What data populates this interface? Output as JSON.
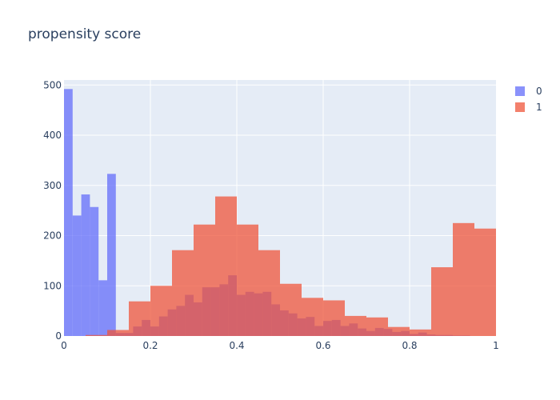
{
  "chart_data": {
    "type": "bar",
    "title": "propensity score",
    "xlabel": "",
    "ylabel": "",
    "xlim": [
      0,
      1
    ],
    "ylim": [
      0,
      510
    ],
    "x_ticks": [
      0,
      0.2,
      0.4,
      0.6,
      0.8,
      1
    ],
    "x_tick_labels": [
      "0",
      "0.2",
      "0.4",
      "0.6",
      "0.8",
      "1"
    ],
    "y_ticks": [
      0,
      100,
      200,
      300,
      400,
      500
    ],
    "y_tick_labels": [
      "0",
      "100",
      "200",
      "300",
      "400",
      "500"
    ],
    "grid": true,
    "legend_position": "top-right",
    "series": [
      {
        "name": "0",
        "color": "#636efa",
        "opacity": 0.75,
        "bins": [
          [
            0.0,
            0.02,
            492
          ],
          [
            0.02,
            0.04,
            240
          ],
          [
            0.04,
            0.06,
            282
          ],
          [
            0.06,
            0.08,
            257
          ],
          [
            0.08,
            0.1,
            111
          ],
          [
            0.1,
            0.12,
            323
          ],
          [
            0.12,
            0.14,
            6
          ],
          [
            0.14,
            0.16,
            6
          ],
          [
            0.16,
            0.18,
            19
          ],
          [
            0.18,
            0.2,
            32
          ],
          [
            0.2,
            0.22,
            19
          ],
          [
            0.22,
            0.24,
            39
          ],
          [
            0.24,
            0.26,
            53
          ],
          [
            0.26,
            0.28,
            60
          ],
          [
            0.28,
            0.3,
            82
          ],
          [
            0.3,
            0.32,
            67
          ],
          [
            0.32,
            0.34,
            97
          ],
          [
            0.34,
            0.36,
            97
          ],
          [
            0.36,
            0.38,
            103
          ],
          [
            0.38,
            0.4,
            121
          ],
          [
            0.4,
            0.42,
            82
          ],
          [
            0.42,
            0.44,
            88
          ],
          [
            0.44,
            0.46,
            85
          ],
          [
            0.46,
            0.48,
            88
          ],
          [
            0.48,
            0.5,
            63
          ],
          [
            0.5,
            0.52,
            51
          ],
          [
            0.52,
            0.54,
            45
          ],
          [
            0.54,
            0.56,
            35
          ],
          [
            0.56,
            0.58,
            38
          ],
          [
            0.58,
            0.6,
            20
          ],
          [
            0.6,
            0.62,
            30
          ],
          [
            0.62,
            0.64,
            32
          ],
          [
            0.64,
            0.66,
            20
          ],
          [
            0.66,
            0.68,
            25
          ],
          [
            0.68,
            0.7,
            15
          ],
          [
            0.7,
            0.72,
            10
          ],
          [
            0.72,
            0.74,
            16
          ],
          [
            0.74,
            0.76,
            14
          ],
          [
            0.76,
            0.78,
            8
          ],
          [
            0.78,
            0.8,
            10
          ],
          [
            0.8,
            0.82,
            4
          ],
          [
            0.82,
            0.84,
            7
          ],
          [
            0.84,
            0.86,
            3
          ],
          [
            0.86,
            0.88,
            2
          ],
          [
            0.88,
            0.9,
            2
          ],
          [
            0.9,
            0.92,
            1
          ],
          [
            0.92,
            0.94,
            1
          ],
          [
            0.94,
            0.96,
            0
          ],
          [
            0.96,
            0.98,
            0
          ],
          [
            0.98,
            1.0,
            0
          ]
        ]
      },
      {
        "name": "1",
        "color": "#ef553b",
        "opacity": 0.75,
        "bins": [
          [
            0.0,
            0.05,
            0
          ],
          [
            0.05,
            0.1,
            2
          ],
          [
            0.1,
            0.15,
            12
          ],
          [
            0.15,
            0.2,
            69
          ],
          [
            0.2,
            0.25,
            100
          ],
          [
            0.25,
            0.3,
            171
          ],
          [
            0.3,
            0.35,
            222
          ],
          [
            0.35,
            0.4,
            278
          ],
          [
            0.4,
            0.45,
            222
          ],
          [
            0.45,
            0.5,
            171
          ],
          [
            0.5,
            0.55,
            104
          ],
          [
            0.55,
            0.6,
            76
          ],
          [
            0.6,
            0.65,
            71
          ],
          [
            0.65,
            0.7,
            40
          ],
          [
            0.7,
            0.75,
            37
          ],
          [
            0.75,
            0.8,
            18
          ],
          [
            0.8,
            0.85,
            13
          ],
          [
            0.85,
            0.9,
            137
          ],
          [
            0.9,
            0.95,
            225
          ],
          [
            0.95,
            1.0,
            214
          ]
        ]
      }
    ]
  }
}
